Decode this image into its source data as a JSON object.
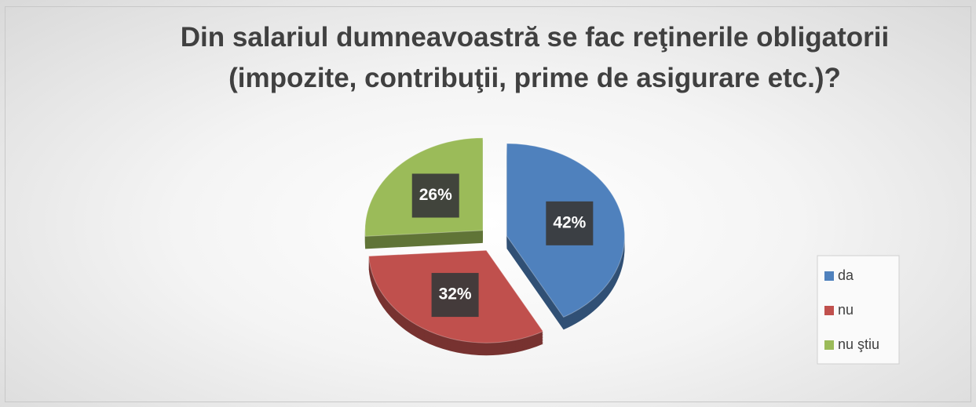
{
  "chart_data": {
    "type": "pie",
    "title": "Din salariul dumneavoastră se fac reţinerile obligatorii (impozite, contribuţii, prime de asigurare etc.)?",
    "categories": [
      "da",
      "nu",
      "nu ştiu"
    ],
    "values": [
      42,
      32,
      26
    ],
    "value_labels": [
      "42%",
      "32%",
      "26%"
    ],
    "colors": [
      "#4f81bd",
      "#c0504d",
      "#9bbb59"
    ],
    "legend": "right"
  }
}
